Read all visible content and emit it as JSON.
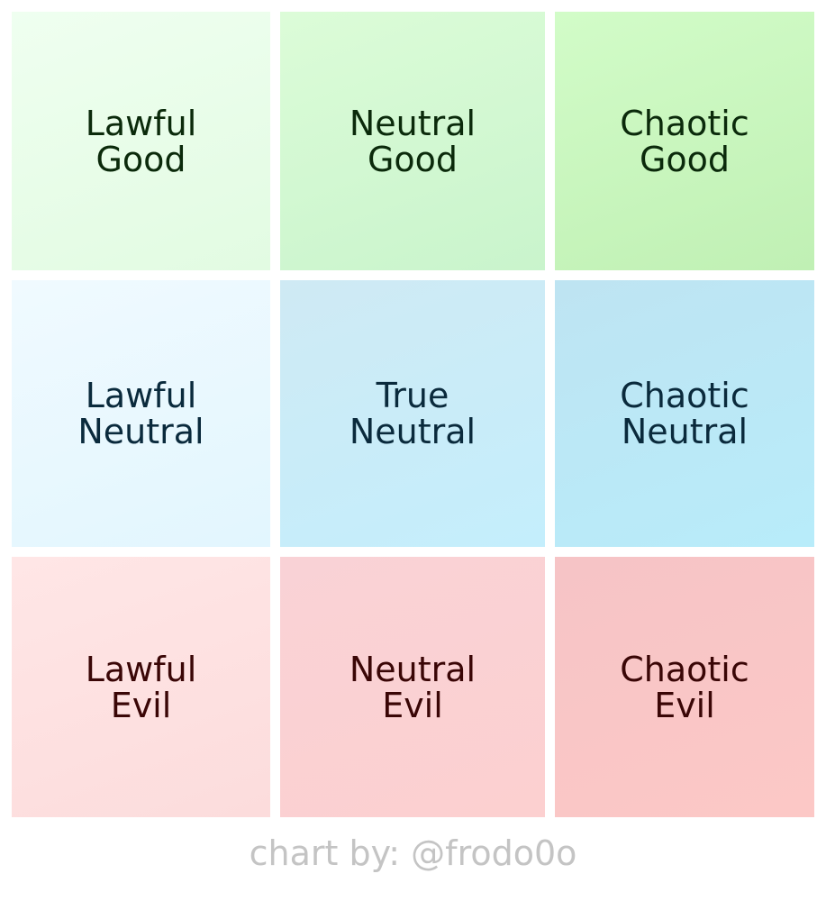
{
  "cells": [
    {
      "lines": [
        "Lawful",
        "Good"
      ]
    },
    {
      "lines": [
        "Neutral",
        "Good"
      ]
    },
    {
      "lines": [
        "Chaotic",
        "Good"
      ]
    },
    {
      "lines": [
        "Lawful",
        "Neutral"
      ]
    },
    {
      "lines": [
        "True",
        "Neutral"
      ]
    },
    {
      "lines": [
        "Chaotic",
        "Neutral"
      ]
    },
    {
      "lines": [
        "Lawful",
        "Evil"
      ]
    },
    {
      "lines": [
        "Neutral",
        "Evil"
      ]
    },
    {
      "lines": [
        "Chaotic",
        "Evil"
      ]
    }
  ],
  "credit": "chart by: @frodo0o"
}
